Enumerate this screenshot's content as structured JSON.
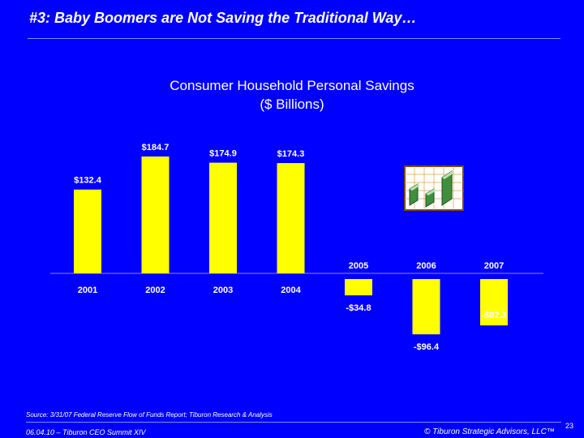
{
  "slide": {
    "title": "#3: Baby Boomers are Not Saving the Traditional Way…",
    "source": "Source:  3/31/07 Federal Reserve Flow of Funds Report; Tiburon Research & Analysis",
    "footer_left": "06.04.10 – Tiburon CEO Summit XIV",
    "footer_right": "© Tiburon Strategic Advisors, LLC™",
    "page_number": "23"
  },
  "icon": "growth-chart-icon",
  "colors": {
    "background": "#0000FF",
    "bar": "#FFFF00",
    "text": "#FFFFFF"
  },
  "chart_data": {
    "type": "bar",
    "title_lines": [
      "Consumer Household Personal Savings",
      "($ Billions)"
    ],
    "categories": [
      "2001",
      "2002",
      "2003",
      "2004",
      "2005",
      "2006",
      "2007"
    ],
    "values": [
      132.4,
      184.7,
      174.9,
      174.3,
      -34.8,
      -96.4,
      -82.3
    ],
    "data_labels": [
      "$132.4",
      "$184.7",
      "$174.9",
      "$174.3",
      "-$34.8",
      "-$96.4",
      "-$82.3"
    ],
    "xlabel": "",
    "ylabel": "",
    "ylim": [
      -100,
      200
    ],
    "grid": false,
    "legend": "none"
  }
}
